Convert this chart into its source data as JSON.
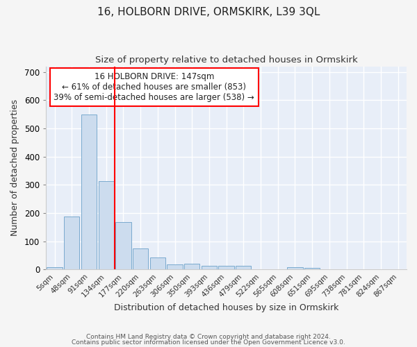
{
  "title": "16, HOLBORN DRIVE, ORMSKIRK, L39 3QL",
  "subtitle": "Size of property relative to detached houses in Ormskirk",
  "xlabel": "Distribution of detached houses by size in Ormskirk",
  "ylabel": "Number of detached properties",
  "bar_color": "#ccdcee",
  "bar_edge_color": "#7aaace",
  "background_color": "#e8eef8",
  "grid_color": "#ffffff",
  "annotation_text": "16 HOLBORN DRIVE: 147sqm\n← 61% of detached houses are smaller (853)\n39% of semi-detached houses are larger (538) →",
  "vline_color": "red",
  "vline_pos": 3.5,
  "categories": [
    "5sqm",
    "48sqm",
    "91sqm",
    "134sqm",
    "177sqm",
    "220sqm",
    "263sqm",
    "306sqm",
    "350sqm",
    "393sqm",
    "436sqm",
    "479sqm",
    "522sqm",
    "565sqm",
    "608sqm",
    "651sqm",
    "695sqm",
    "738sqm",
    "781sqm",
    "824sqm",
    "867sqm"
  ],
  "values": [
    8,
    188,
    548,
    314,
    168,
    75,
    42,
    18,
    20,
    12,
    12,
    12,
    0,
    0,
    8,
    5,
    0,
    0,
    0,
    0,
    0
  ],
  "ylim": [
    0,
    720
  ],
  "yticks": [
    0,
    100,
    200,
    300,
    400,
    500,
    600,
    700
  ],
  "fig_bg_color": "#f5f5f5",
  "footnote1": "Contains HM Land Registry data © Crown copyright and database right 2024.",
  "footnote2": "Contains public sector information licensed under the Open Government Licence v3.0."
}
